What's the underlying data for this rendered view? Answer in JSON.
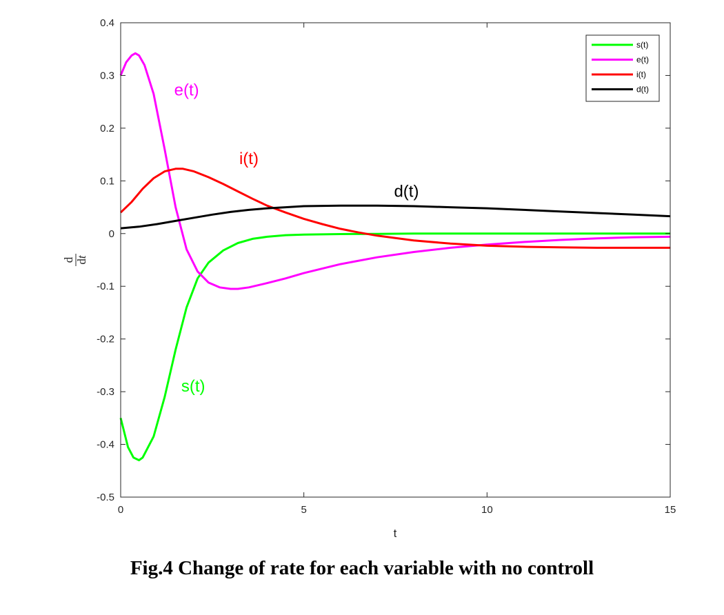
{
  "caption": "Fig.4 Change of rate for each variable with no controll",
  "chart_data": {
    "type": "line",
    "title": "",
    "xlabel": "t",
    "ylabel": {
      "numerator": "d",
      "denominator": "dt",
      "denominator_d": "d",
      "denominator_t": "t"
    },
    "xlim": [
      0,
      15
    ],
    "ylim": [
      -0.5,
      0.4
    ],
    "xticks": [
      0,
      5,
      10,
      15
    ],
    "xtick_labels": [
      "0",
      "5",
      "10",
      "15"
    ],
    "yticks": [
      -0.5,
      -0.4,
      -0.3,
      -0.2,
      -0.1,
      0,
      0.1,
      0.2,
      0.3,
      0.4
    ],
    "ytick_labels": [
      "-0.5",
      "-0.4",
      "-0.3",
      "-0.2",
      "-0.1",
      "0",
      "0.1",
      "0.2",
      "0.3",
      "0.4"
    ],
    "grid": false,
    "legend_position": "top-right",
    "series": [
      {
        "name": "s(t)",
        "color": "#00ff00",
        "x": [
          0,
          0.2,
          0.35,
          0.5,
          0.6,
          0.9,
          1.2,
          1.5,
          1.8,
          2.1,
          2.4,
          2.8,
          3.2,
          3.6,
          4,
          4.5,
          5,
          6,
          7,
          8,
          10,
          12,
          15
        ],
        "y": [
          -0.35,
          -0.405,
          -0.425,
          -0.43,
          -0.425,
          -0.385,
          -0.31,
          -0.22,
          -0.14,
          -0.085,
          -0.055,
          -0.032,
          -0.018,
          -0.01,
          -0.006,
          -0.003,
          -0.002,
          -0.001,
          -0.0005,
          0,
          0,
          0,
          0
        ]
      },
      {
        "name": "e(t)",
        "color": "#ff00ff",
        "x": [
          0,
          0.15,
          0.3,
          0.4,
          0.5,
          0.65,
          0.9,
          1.2,
          1.5,
          1.8,
          2.1,
          2.4,
          2.7,
          3,
          3.2,
          3.5,
          4,
          4.5,
          5,
          6,
          7,
          8,
          9,
          10,
          11,
          12,
          13,
          14,
          15
        ],
        "y": [
          0.3,
          0.325,
          0.338,
          0.342,
          0.338,
          0.32,
          0.265,
          0.16,
          0.05,
          -0.03,
          -0.072,
          -0.093,
          -0.102,
          -0.105,
          -0.105,
          -0.102,
          -0.094,
          -0.085,
          -0.075,
          -0.058,
          -0.045,
          -0.035,
          -0.027,
          -0.021,
          -0.016,
          -0.012,
          -0.009,
          -0.007,
          -0.006
        ]
      },
      {
        "name": "i(t)",
        "color": "#ff0000",
        "x": [
          0,
          0.3,
          0.6,
          0.9,
          1.2,
          1.5,
          1.7,
          2,
          2.4,
          2.8,
          3.2,
          3.6,
          4,
          4.5,
          5,
          5.5,
          6,
          6.5,
          7,
          8,
          9,
          10,
          11,
          12,
          13,
          14,
          15
        ],
        "y": [
          0.04,
          0.06,
          0.085,
          0.105,
          0.118,
          0.123,
          0.123,
          0.118,
          0.107,
          0.094,
          0.08,
          0.066,
          0.053,
          0.04,
          0.028,
          0.018,
          0.009,
          0.002,
          -0.004,
          -0.013,
          -0.019,
          -0.023,
          -0.025,
          -0.026,
          -0.027,
          -0.027,
          -0.027
        ]
      },
      {
        "name": "d(t)",
        "color": "#000000",
        "x": [
          0,
          0.5,
          1,
          1.5,
          2,
          2.5,
          3,
          3.5,
          4,
          4.5,
          5,
          6,
          7,
          8,
          9,
          10,
          11,
          12,
          13,
          14,
          15
        ],
        "y": [
          0.01,
          0.013,
          0.018,
          0.024,
          0.03,
          0.036,
          0.041,
          0.045,
          0.048,
          0.05,
          0.052,
          0.053,
          0.053,
          0.052,
          0.05,
          0.048,
          0.045,
          0.042,
          0.039,
          0.036,
          0.033
        ]
      }
    ],
    "annotations": [
      {
        "text": "e(t)",
        "x": 1.8,
        "y": 0.262,
        "color": "#ff00ff"
      },
      {
        "text": "i(t)",
        "x": 3.5,
        "y": 0.132,
        "color": "#ff0000"
      },
      {
        "text": "d(t)",
        "x": 7.8,
        "y": 0.07,
        "color": "#000000"
      },
      {
        "text": "s(t)",
        "x": 1.98,
        "y": -0.3,
        "color": "#00ff00"
      }
    ]
  }
}
